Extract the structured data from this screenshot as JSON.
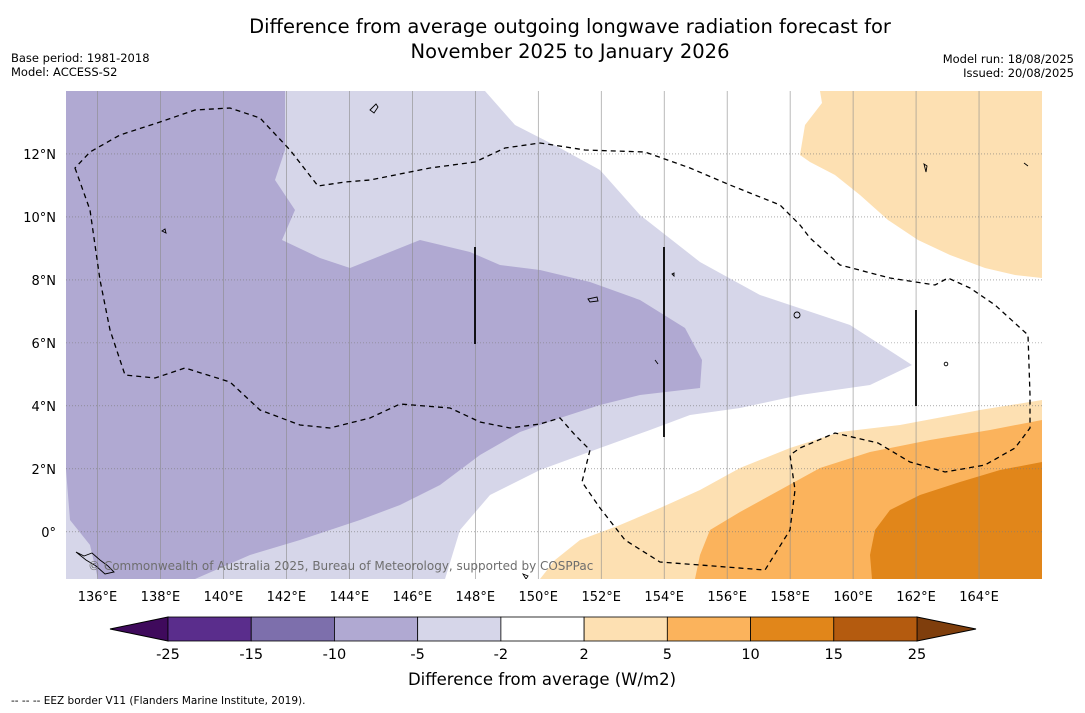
{
  "title": {
    "line1": "Difference from average outgoing longwave radiation forecast for",
    "line2": "November 2025 to January 2026"
  },
  "meta_left": {
    "base_period": "Base period: 1981-2018",
    "model": "Model: ACCESS-S2"
  },
  "meta_right": {
    "model_run": "Model run: 18/08/2025",
    "issued": "Issued: 20/08/2025"
  },
  "copyright": "© Commonwealth of Australia 2025, Bureau of Meteorology, supported by COSPPac",
  "footnote": "--  --  -- EEZ border V11 (Flanders Marine Institute, 2019).",
  "map": {
    "lon_range": [
      135,
      166
    ],
    "lat_range": [
      -1.5,
      14
    ],
    "lon_ticks": [
      {
        "value": 136,
        "label": "136°E"
      },
      {
        "value": 138,
        "label": "138°E"
      },
      {
        "value": 140,
        "label": "140°E"
      },
      {
        "value": 142,
        "label": "142°E"
      },
      {
        "value": 144,
        "label": "144°E"
      },
      {
        "value": 146,
        "label": "146°E"
      },
      {
        "value": 148,
        "label": "148°E"
      },
      {
        "value": 150,
        "label": "150°E"
      },
      {
        "value": 152,
        "label": "152°E"
      },
      {
        "value": 154,
        "label": "154°E"
      },
      {
        "value": 156,
        "label": "156°E"
      },
      {
        "value": 158,
        "label": "158°E"
      },
      {
        "value": 160,
        "label": "160°E"
      },
      {
        "value": 162,
        "label": "162°E"
      },
      {
        "value": 164,
        "label": "164°E"
      }
    ],
    "lat_ticks": [
      {
        "value": 0,
        "label": "0°"
      },
      {
        "value": 2,
        "label": "2°N"
      },
      {
        "value": 4,
        "label": "4°N"
      },
      {
        "value": 6,
        "label": "6°N"
      },
      {
        "value": 8,
        "label": "8°N"
      },
      {
        "value": 10,
        "label": "10°N"
      },
      {
        "value": 12,
        "label": "12°N"
      }
    ]
  },
  "colorbar": {
    "title": "Difference from average (W/m2)",
    "labels": [
      "-25",
      "-15",
      "-10",
      "-5",
      "-2",
      "2",
      "5",
      "10",
      "15",
      "25"
    ],
    "colors": [
      "#5a2d8c",
      "#7d6fac",
      "#b0a9d2",
      "#d6d6e9",
      "#ffffff",
      "#fde0b2",
      "#fbb35c",
      "#e1861a",
      "#b45b0f"
    ],
    "under_color": "#3f0a5c",
    "over_color": "#7f3e0c"
  },
  "colors": {
    "purple_mid": "#b0a9d2",
    "purple_light": "#d6d6e9",
    "orange_light": "#fde0b2",
    "orange_mid": "#fbb35c",
    "orange_dark": "#e1861a"
  }
}
